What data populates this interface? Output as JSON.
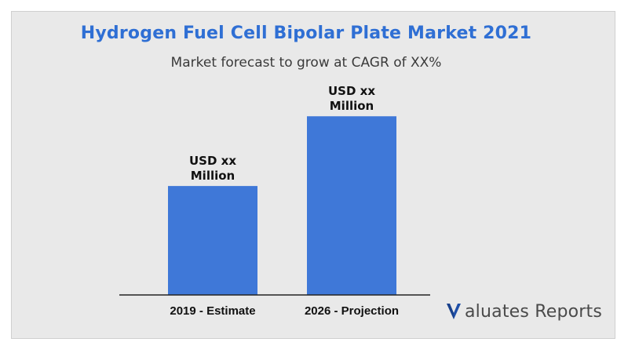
{
  "chart_data": {
    "type": "bar",
    "title": "Hydrogen Fuel Cell Bipolar Plate Market 2021",
    "subtitle": "Market forecast to grow at CAGR of XX%",
    "categories": [
      "2019 - Estimate",
      "2026 - Projection"
    ],
    "values": [
      1.0,
      1.64
    ],
    "data_labels": [
      [
        "USD xx",
        "Million"
      ],
      [
        "USD xx",
        "Million"
      ]
    ],
    "bar_color": "#3f78d8",
    "xlabel": "",
    "ylabel": "",
    "ylim": [
      0,
      1.8
    ],
    "grid": false,
    "legend": "none"
  },
  "branding": {
    "logo_mark": "V",
    "logo_text": "aluates Reports",
    "logo_color": "#1f4fa8"
  },
  "colors": {
    "title": "#2f6fd4",
    "background": "#e9e9e9"
  }
}
